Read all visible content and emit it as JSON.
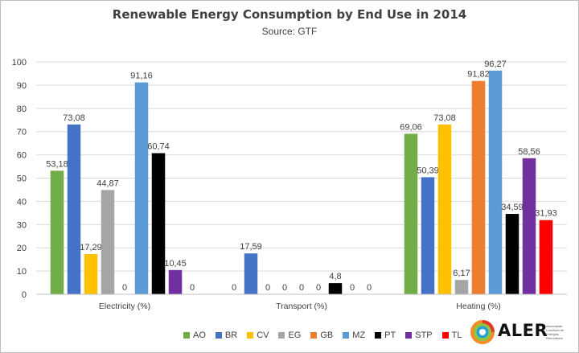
{
  "chart_data": {
    "type": "bar",
    "title": "Renewable Energy Consumption by End Use in 2014",
    "subtitle": "Source: GTF",
    "categories": [
      "Electricity (%)",
      "Transport (%)",
      "Heating (%)"
    ],
    "series": [
      {
        "name": "AO",
        "color": "#70ad47",
        "values": [
          53.18,
          0,
          69.06
        ],
        "labels": [
          "53,18",
          "0",
          "69,06"
        ]
      },
      {
        "name": "BR",
        "color": "#4472c4",
        "values": [
          73.08,
          17.59,
          50.39
        ],
        "labels": [
          "73,08",
          "17,59",
          "50,39"
        ]
      },
      {
        "name": "CV",
        "color": "#ffc000",
        "values": [
          17.29,
          0,
          73.08
        ],
        "labels": [
          "17,29",
          "0",
          "73,08"
        ]
      },
      {
        "name": "EG",
        "color": "#a5a5a5",
        "values": [
          44.87,
          0,
          6.17
        ],
        "labels": [
          "44,87",
          "0",
          "6,17"
        ]
      },
      {
        "name": "GB",
        "color": "#ed7d31",
        "values": [
          0,
          0,
          91.82
        ],
        "labels": [
          "0",
          "0",
          "91,82"
        ]
      },
      {
        "name": "MZ",
        "color": "#5b9bd5",
        "values": [
          91.16,
          0,
          96.27
        ],
        "labels": [
          "91,16",
          "0",
          "96,27"
        ]
      },
      {
        "name": "PT",
        "color": "#000000",
        "values": [
          60.74,
          4.8,
          34.59
        ],
        "labels": [
          "60,74",
          "4,8",
          "34,59"
        ]
      },
      {
        "name": "STP",
        "color": "#7030a0",
        "values": [
          10.45,
          0,
          58.56
        ],
        "labels": [
          "10,45",
          "0",
          "58,56"
        ]
      },
      {
        "name": "TL",
        "color": "#ff0000",
        "values": [
          0,
          0,
          31.93
        ],
        "labels": [
          "0",
          "0",
          "31,93"
        ]
      }
    ],
    "ylim": [
      0,
      100
    ],
    "yticks": [
      0,
      10,
      20,
      30,
      40,
      50,
      60,
      70,
      80,
      90,
      100
    ],
    "grid": true,
    "legend": "bottom"
  },
  "logo": {
    "name": "ALER",
    "small_text": "Associação Lusófona de Energias Renováveis"
  }
}
